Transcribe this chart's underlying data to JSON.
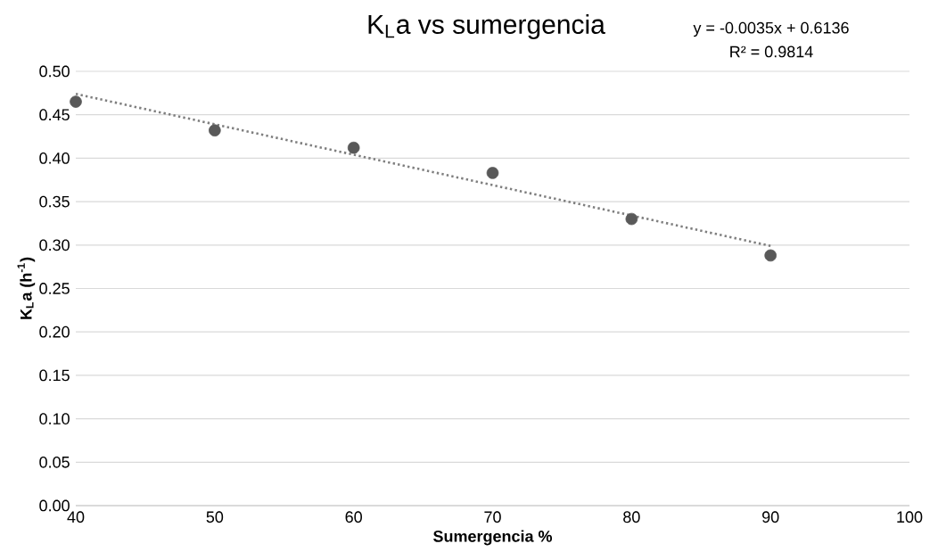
{
  "chart_data": {
    "type": "scatter",
    "title": "K$_{L}$a vs sumergencia",
    "xlabel": "Sumergencia %",
    "ylabel": "K$_{L}$a (h$^{-1}$)",
    "annotations": [
      "y = -0.0035x + 0.6136",
      "R² = 0.9814"
    ],
    "x": [
      40,
      50,
      60,
      70,
      80,
      90
    ],
    "series": [
      {
        "color": "#595959",
        "marker": "circle",
        "values": [
          0.465,
          0.432,
          0.412,
          0.383,
          0.33,
          0.288
        ]
      },
      {
        "type": "line",
        "color": "#7f7f7f",
        "marker": "none",
        "line_style": "dotted",
        "x": [
          40,
          90
        ],
        "values": [
          0.474,
          0.299
        ]
      }
    ],
    "xlim": [
      40,
      100
    ],
    "xticks": [
      40,
      50,
      60,
      70,
      80,
      90,
      100
    ],
    "ylim": [
      0,
      0.5
    ],
    "yticks": [
      {
        "value": 0,
        "label": "0.00"
      },
      {
        "value": 0.05,
        "label": "0.05"
      },
      {
        "value": 0.1,
        "label": "0.10"
      },
      {
        "value": 0.15,
        "label": "0.15"
      },
      {
        "value": 0.2,
        "label": "0.20"
      },
      {
        "value": 0.25,
        "label": "0.25"
      },
      {
        "value": 0.3,
        "label": "0.30"
      },
      {
        "value": 0.35,
        "label": "0.35"
      },
      {
        "value": 0.4,
        "label": "0.40"
      },
      {
        "value": 0.45,
        "label": "0.45"
      },
      {
        "value": 0.5,
        "label": "0.50"
      }
    ],
    "grid": "y"
  }
}
